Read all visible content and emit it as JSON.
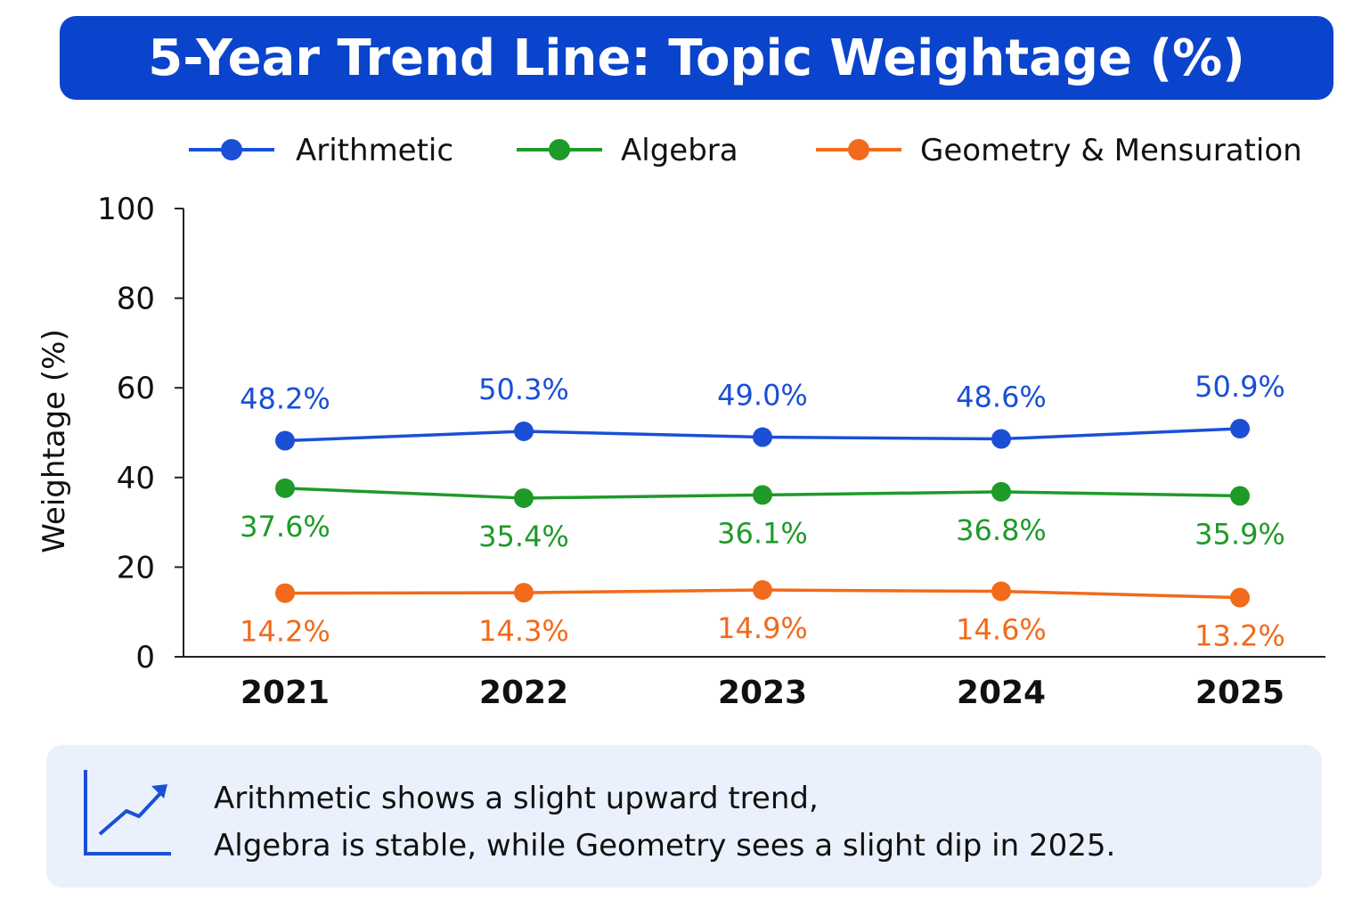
{
  "chart_data": {
    "type": "line",
    "title": "5-Year Trend Line: Topic Weightage (%)",
    "ylabel": "Weightage (%)",
    "xlabel": "",
    "categories": [
      "2021",
      "2022",
      "2023",
      "2024",
      "2025"
    ],
    "ylim": [
      0,
      100
    ],
    "yticks": [
      0,
      20,
      40,
      60,
      80,
      100
    ],
    "grid": false,
    "legend_position": "top",
    "series": [
      {
        "name": "Arithmetic",
        "color": "#1a4fd6",
        "values": [
          48.2,
          50.3,
          49.0,
          48.6,
          50.9
        ],
        "labels": [
          "48.2%",
          "50.3%",
          "49.0%",
          "48.6%",
          "50.9%"
        ],
        "label_position": "above"
      },
      {
        "name": "Algebra",
        "color": "#1e9a28",
        "values": [
          37.6,
          35.4,
          36.1,
          36.8,
          35.9
        ],
        "labels": [
          "37.6%",
          "35.4%",
          "36.1%",
          "36.8%",
          "35.9%"
        ],
        "label_position": "below"
      },
      {
        "name": "Geometry & Mensuration",
        "color": "#f26a1b",
        "values": [
          14.2,
          14.3,
          14.9,
          14.6,
          13.2
        ],
        "labels": [
          "14.2%",
          "14.3%",
          "14.9%",
          "14.6%",
          "13.2%"
        ],
        "label_position": "below"
      }
    ]
  },
  "note": {
    "icon": "trend-up-icon",
    "line1": "Arithmetic shows a slight upward trend,",
    "line2": "Algebra is stable, while Geometry sees a slight dip in 2025."
  }
}
